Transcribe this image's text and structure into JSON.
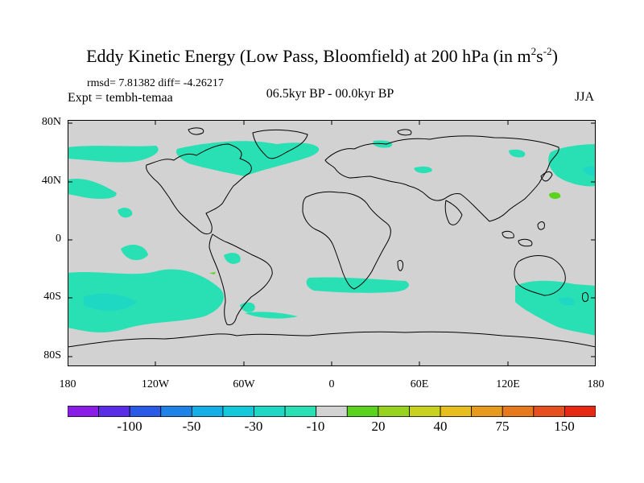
{
  "title": {
    "main": "Eddy Kinetic Energy (Low Pass, Bloomfield) at 200 hPa (in m",
    "sup1": "2",
    "mid": "s",
    "sup2": "-2",
    "close": ")"
  },
  "stats": "rmsd= 7.81382 diff= -4.26217",
  "expt": "Expt = tembh-temaa",
  "period": "06.5kyr BP - 00.0kyr BP",
  "season": "JJA",
  "axes": {
    "lat_labels": [
      "80N",
      "40N",
      "0",
      "40S",
      "80S"
    ],
    "lon_labels": [
      "180",
      "120W",
      "60W",
      "0",
      "60E",
      "120E",
      "180"
    ]
  },
  "colorbar": {
    "labels": [
      "-100",
      "-50",
      "-30",
      "-10",
      "20",
      "40",
      "75",
      "150"
    ],
    "colors": [
      "#8a1ee6",
      "#5a2ee6",
      "#2a5ae6",
      "#1e82e6",
      "#16aee6",
      "#14c8dc",
      "#1ed8c4",
      "#28e0b4",
      "#d2d2d2",
      "#5ad21e",
      "#96d21e",
      "#c8d21e",
      "#e6be1e",
      "#e69a1e",
      "#e6781e",
      "#e6501e",
      "#e62814"
    ]
  },
  "map": {
    "background_color": "#d2d2d2",
    "anomaly_color": "#28e0b4",
    "stronger_anomaly_color": "#1ed8c4",
    "positive_anomaly_color": "#5ad21e"
  }
}
